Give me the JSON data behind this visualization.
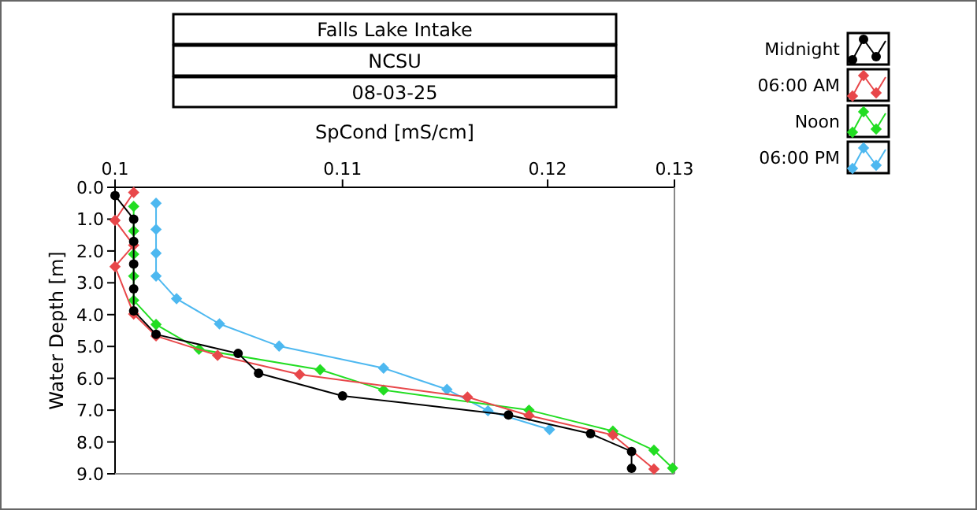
{
  "chart_data": {
    "type": "line",
    "title": "Falls Lake Intake",
    "subtitle": "NCSU",
    "annotations": [
      "08-03-25"
    ],
    "xlabel": "SpCond [mS/cm]",
    "ylabel": "Water Depth [m]",
    "xlim": [
      0.1,
      0.13
    ],
    "xticks": [
      0.1,
      {
        "value": 0.1122,
        "label": "0.11"
      },
      {
        "value": 0.1232,
        "label": "0.12"
      },
      0.13
    ],
    "ylim": [
      9,
      0
    ],
    "yticks": [
      {
        "value": 0,
        "label": "0.0"
      },
      {
        "value": 1,
        "label": "1.0"
      },
      {
        "value": 2,
        "label": "2.0"
      },
      {
        "value": 3,
        "label": "3.0"
      },
      {
        "value": 4,
        "label": "4.0"
      },
      {
        "value": 5,
        "label": "5.0"
      },
      {
        "value": 6,
        "label": "6.0"
      },
      {
        "value": 7,
        "label": "7.0"
      },
      {
        "value": 8,
        "label": "8.0"
      },
      {
        "value": 9,
        "label": "9.0"
      }
    ],
    "grid": false,
    "legend": "top right",
    "line_style": "solid",
    "series": [
      {
        "name": "Midnight",
        "color": "#000000",
        "marker": "circle",
        "x": [
          0.1,
          0.101,
          0.101,
          0.101,
          0.101,
          0.101,
          0.1022,
          0.1066,
          0.1077,
          0.1122,
          0.1211,
          0.1255,
          0.1277,
          0.1277
        ],
        "values": [
          0.26,
          1.0,
          1.7,
          2.41,
          3.19,
          3.88,
          4.62,
          5.22,
          5.84,
          6.55,
          7.15,
          7.74,
          8.3,
          8.83
        ]
      },
      {
        "name": "06:00 AM",
        "color": "#e8474a",
        "marker": "diamond",
        "x": [
          0.101,
          0.1,
          0.101,
          0.1,
          0.101,
          0.1022,
          0.1055,
          0.1099,
          0.1189,
          0.1222,
          0.1267,
          0.1289
        ],
        "values": [
          0.16,
          1.04,
          1.82,
          2.49,
          3.98,
          4.67,
          5.28,
          5.88,
          6.59,
          7.17,
          7.78,
          8.85
        ]
      },
      {
        "name": "Noon",
        "color": "#22dd22",
        "marker": "diamond",
        "x": [
          0.101,
          0.101,
          0.101,
          0.101,
          0.101,
          0.1022,
          0.1045,
          0.111,
          0.1144,
          0.1222,
          0.1267,
          0.1289,
          0.1299
        ],
        "values": [
          0.6,
          1.37,
          2.1,
          2.79,
          3.55,
          4.31,
          5.09,
          5.73,
          6.37,
          7.0,
          7.66,
          8.26,
          8.82
        ]
      },
      {
        "name": "06:00 PM",
        "color": "#4db8f0",
        "marker": "diamond",
        "x": [
          0.1022,
          0.1022,
          0.1022,
          0.1022,
          0.1033,
          0.1056,
          0.1088,
          0.1144,
          0.1178,
          0.12,
          0.1233
        ],
        "values": [
          0.5,
          1.32,
          2.07,
          2.79,
          3.5,
          4.29,
          4.99,
          5.68,
          6.35,
          7.02,
          7.61
        ]
      }
    ]
  }
}
